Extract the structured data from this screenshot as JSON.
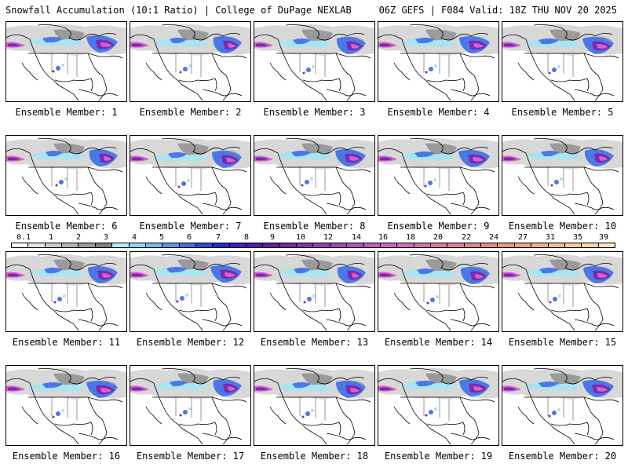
{
  "header": {
    "title_left": "Snowfall Accumulation (10:1 Ratio) | College of DuPage NEXLAB",
    "title_right": "06Z GEFS | F084 Valid: 18Z THU NOV 20 2025"
  },
  "members": [
    {
      "label": "Ensemble Member: 1"
    },
    {
      "label": "Ensemble Member: 2"
    },
    {
      "label": "Ensemble Member: 3"
    },
    {
      "label": "Ensemble Member: 4"
    },
    {
      "label": "Ensemble Member: 5"
    },
    {
      "label": "Ensemble Member: 6"
    },
    {
      "label": "Ensemble Member: 7"
    },
    {
      "label": "Ensemble Member: 8"
    },
    {
      "label": "Ensemble Member: 9"
    },
    {
      "label": "Ensemble Member: 10"
    },
    {
      "label": "Ensemble Member: 11"
    },
    {
      "label": "Ensemble Member: 12"
    },
    {
      "label": "Ensemble Member: 13"
    },
    {
      "label": "Ensemble Member: 14"
    },
    {
      "label": "Ensemble Member: 15"
    },
    {
      "label": "Ensemble Member: 16"
    },
    {
      "label": "Ensemble Member: 17"
    },
    {
      "label": "Ensemble Member: 18"
    },
    {
      "label": "Ensemble Member: 19"
    },
    {
      "label": "Ensemble Member: 20"
    }
  ],
  "colorbar": {
    "ticks": [
      "0.1",
      "1",
      "2",
      "3",
      "4",
      "5",
      "6",
      "7",
      "8",
      "9",
      "10",
      "12",
      "14",
      "16",
      "18",
      "20",
      "22",
      "24",
      "27",
      "31",
      "35",
      "39"
    ],
    "colors": [
      "#ffffff",
      "#e6e6e6",
      "#cccccc",
      "#b3b3b3",
      "#999999",
      "#808080",
      "#b5ecf5",
      "#8fd8f0",
      "#78b8f0",
      "#5c96ea",
      "#4070e6",
      "#2a4ae0",
      "#1f2ad6",
      "#3a20c8",
      "#5418b8",
      "#6a1aa8",
      "#7e22a8",
      "#8e2eac",
      "#9a3ab4",
      "#a646b8",
      "#b452be",
      "#c25ec4",
      "#cc66c4",
      "#d26cba",
      "#d672ac",
      "#da789e",
      "#de7e92",
      "#e2868a",
      "#e68e82",
      "#ea987c",
      "#eea47c",
      "#f2b080",
      "#f4bc8c",
      "#f6c89a",
      "#f8d6ac",
      "#fae4c4"
    ]
  },
  "map_colors": {
    "land": "#ffffff",
    "grey_light": "#d8d8d8",
    "grey_dark": "#9a9a9a",
    "cyan": "#a8e4f2",
    "blue": "#4a78e6",
    "purple": "#7a2ab0",
    "magenta": "#d860c8",
    "outline": "#000000"
  }
}
